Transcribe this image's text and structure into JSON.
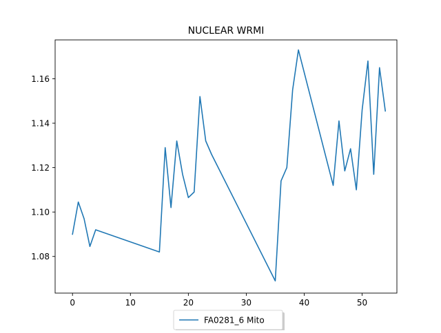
{
  "chart_data": {
    "type": "line",
    "title": "NUCLEAR WRMI",
    "xlabel": "",
    "ylabel": "",
    "xlim": [
      -3,
      56
    ],
    "ylim": [
      1.0635,
      1.1775
    ],
    "xticks": [
      0,
      10,
      20,
      30,
      40,
      50
    ],
    "yticks": [
      1.08,
      1.1,
      1.12,
      1.14,
      1.16
    ],
    "ytick_labels": [
      "1.08",
      "1.10",
      "1.12",
      "1.14",
      "1.16"
    ],
    "grid": false,
    "legend_position": "lower-center-outside",
    "series": [
      {
        "name": "FA0281_6 Mito",
        "color": "#1f77b4",
        "x": [
          0,
          1,
          2,
          3,
          4,
          15,
          16,
          17,
          18,
          19,
          20,
          21,
          22,
          23,
          24,
          35,
          36,
          37,
          38,
          39,
          45,
          46,
          47,
          48,
          49,
          50,
          51,
          52,
          53,
          54
        ],
        "y": [
          1.09,
          1.1045,
          1.097,
          1.0845,
          1.092,
          1.082,
          1.129,
          1.102,
          1.132,
          1.117,
          1.1065,
          1.109,
          1.152,
          1.132,
          1.126,
          1.069,
          1.114,
          1.12,
          1.155,
          1.173,
          1.112,
          1.141,
          1.1185,
          1.1285,
          1.11,
          1.146,
          1.168,
          1.117,
          1.165,
          1.1455
        ]
      }
    ]
  }
}
